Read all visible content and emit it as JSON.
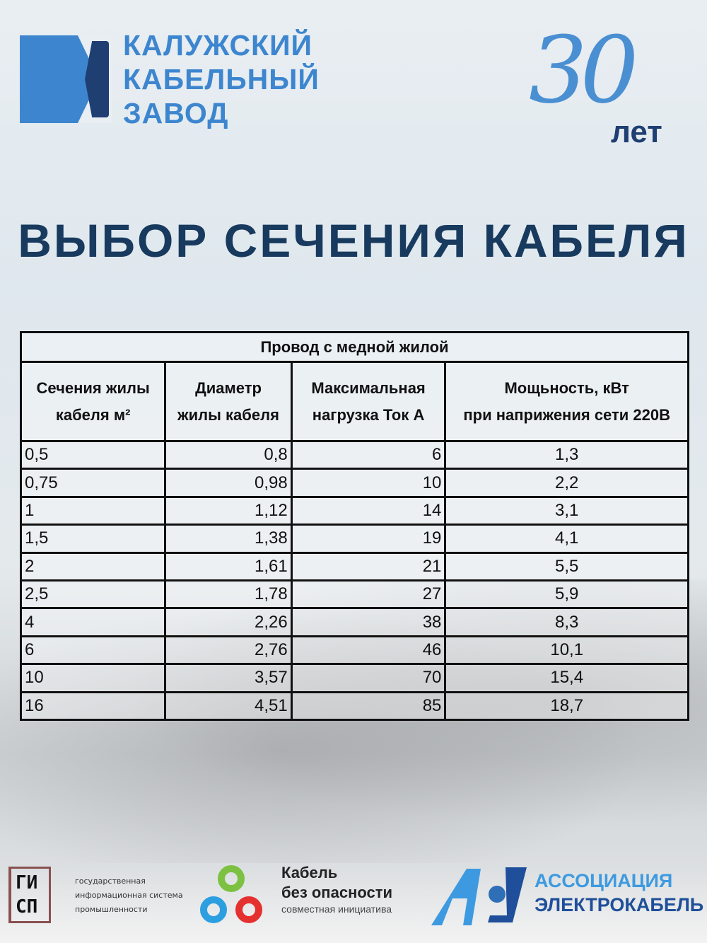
{
  "logo": {
    "lines": [
      "КАЛУЖСКИЙ",
      "КАБЕЛЬНЫЙ",
      "ЗАВОД"
    ]
  },
  "anniversary": {
    "number": "30",
    "label": "лет"
  },
  "title": "ВЫБОР СЕЧЕНИЯ КАБЕЛЯ",
  "table": {
    "caption": "Провод с медной жилой",
    "headers": [
      [
        "Сечения жилы",
        "кабеля м²"
      ],
      [
        "Диаметр",
        "жилы кабеля"
      ],
      [
        "Максимальная",
        "нагрузка Ток А"
      ],
      [
        "Мощьность, кВт",
        "при наприжения сети 220В"
      ]
    ],
    "rows": [
      [
        "0,5",
        "0,8",
        "6",
        "1,3"
      ],
      [
        "0,75",
        "0,98",
        "10",
        "2,2"
      ],
      [
        "1",
        "1,12",
        "14",
        "3,1"
      ],
      [
        "1,5",
        "1,38",
        "19",
        "4,1"
      ],
      [
        "2",
        "1,61",
        "21",
        "5,5"
      ],
      [
        "2,5",
        "1,78",
        "27",
        "5,9"
      ],
      [
        "4",
        "2,26",
        "38",
        "8,3"
      ],
      [
        "6",
        "2,76",
        "46",
        "10,1"
      ],
      [
        "10",
        "3,57",
        "70",
        "15,4"
      ],
      [
        "16",
        "4,51",
        "85",
        "18,7"
      ]
    ]
  },
  "footer": {
    "gisp": {
      "mark": [
        "ГИ",
        "СП"
      ],
      "text": [
        "государственная",
        "информационная система",
        "промышленности"
      ]
    },
    "kbo": {
      "title": [
        "Кабель",
        "без опасности"
      ],
      "subtitle": "совместная инициатива"
    },
    "ae": {
      "lines": [
        "АССОЦИАЦИЯ",
        "ЭЛЕКТРОКАБЕЛЬ"
      ]
    }
  },
  "colors": {
    "brand_blue": "#3d86cf",
    "brand_dark": "#1f3f72",
    "title": "#183a5e"
  }
}
